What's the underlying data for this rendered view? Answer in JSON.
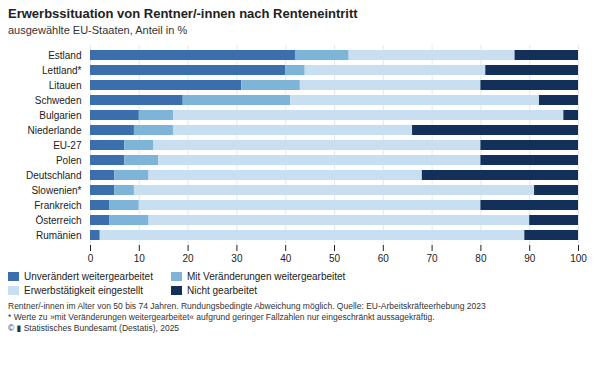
{
  "chart_data": {
    "type": "bar",
    "orientation": "horizontal",
    "stacked": true,
    "title": "Erwerbssituation von Rentner/-innen nach Renteneintritt",
    "subtitle": "ausgewählte EU-Staaten, Anteil in %",
    "categories": [
      "Estland",
      "Lettland*",
      "Litauen",
      "Schweden",
      "Bulgarien",
      "Niederlande",
      "EU-27",
      "Polen",
      "Deutschland",
      "Slowenien*",
      "Frankreich",
      "Österreich",
      "Rumänien"
    ],
    "series": [
      {
        "name": "Unverändert weitergearbeitet",
        "color": "#3a6ead",
        "values": [
          42,
          40,
          31,
          19,
          10,
          9,
          7,
          7,
          5,
          5,
          4,
          4,
          2
        ]
      },
      {
        "name": "Mit Veränderungen weitergearbeitet",
        "color": "#7eb4d8",
        "values": [
          11,
          4,
          12,
          22,
          7,
          8,
          6,
          7,
          7,
          4,
          6,
          8,
          0
        ]
      },
      {
        "name": "Erwerbstätigkeit eingestellt",
        "color": "#c8dff2",
        "values": [
          34,
          37,
          37,
          51,
          80,
          49,
          67,
          66,
          56,
          82,
          70,
          78,
          87
        ]
      },
      {
        "name": "Nicht gearbeitet",
        "color": "#13305a",
        "values": [
          13,
          19,
          20,
          8,
          3,
          34,
          20,
          20,
          32,
          9,
          20,
          10,
          11
        ]
      }
    ],
    "xlim": [
      0,
      100
    ],
    "xticks": [
      0,
      10,
      20,
      30,
      40,
      50,
      60,
      70,
      80,
      90,
      100
    ],
    "grid": true,
    "legend": "bottom",
    "annotations": [
      "Rentner/-innen im Alter von 50 bis 74 Jahren. Rundungsbedingte Abweichung möglich. Quelle: EU-Arbeitskräfteerhebung 2023",
      "* Werte zu »mit Veränderungen weitergearbeitet« aufgrund geringer Fallzahlen nur eingeschränkt aussagekräftig.",
      "© ▮ Statistisches Bundesamt (Destatis), 2025"
    ]
  }
}
